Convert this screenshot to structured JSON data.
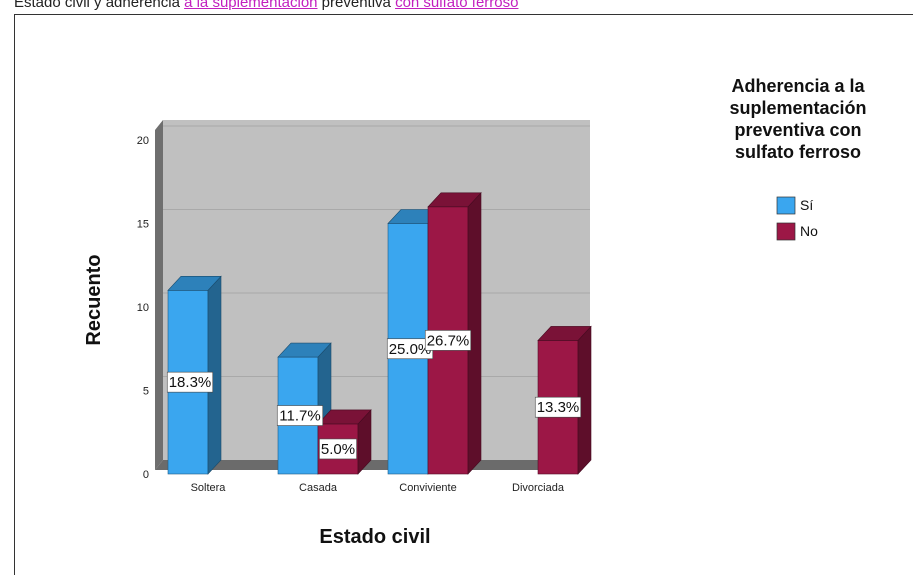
{
  "caption": {
    "part1": "Estado civil y adherencia ",
    "part2": "a la suplementación",
    "part3": " preventiva ",
    "part4": "con sulfato ferroso"
  },
  "chart_data": {
    "type": "bar",
    "title": "",
    "xlabel": "Estado civil",
    "ylabel": "Recuento",
    "ylim": [
      0,
      20
    ],
    "yticks": [
      0,
      5,
      10,
      15,
      20
    ],
    "categories": [
      "Soltera",
      "Casada",
      "Conviviente",
      "Divorciada"
    ],
    "legend_title": "Adherencia a la suplementación preventiva con sulfato ferroso",
    "legend_title_lines": [
      "Adherencia a la",
      "suplementación",
      "preventiva con",
      "sulfato ferroso"
    ],
    "legend_position": "right",
    "grid": true,
    "series": [
      {
        "name": "Sí",
        "color": "#3aa6ef",
        "values": [
          11,
          7,
          15,
          0
        ],
        "labels": [
          "18.3%",
          "11.7%",
          "25.0%",
          ""
        ]
      },
      {
        "name": "No",
        "color": "#9c1746",
        "values": [
          0,
          3,
          16,
          8
        ],
        "labels": [
          "",
          "5.0%",
          "26.7%",
          "13.3%"
        ]
      }
    ]
  }
}
